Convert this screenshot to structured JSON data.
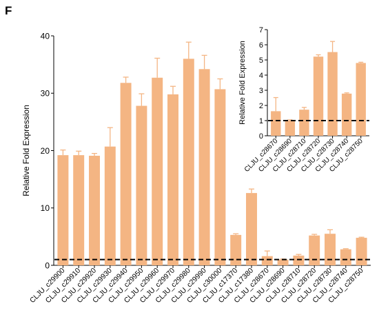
{
  "panel_label": "F",
  "chart_data": [
    {
      "type": "bar",
      "title": "",
      "xlabel": "",
      "ylabel": "Relative Fold Expression",
      "ylim": [
        0,
        40
      ],
      "yticks": [
        0,
        10,
        20,
        30,
        40
      ],
      "bar_color": "#f4b583",
      "error_color": "#f4b583",
      "reference_line": {
        "y": 1,
        "style": "dashed",
        "color": "#000000"
      },
      "categories": [
        "CLJU_c29900",
        "CLJU_c29910",
        "CLJU_c29920",
        "CLJU_c29930",
        "CLJU_c29940",
        "CLJU_c29950",
        "CLJU_c29960",
        "CLJU_c29970",
        "CLJU_c29980",
        "CLJU_c29990",
        "CLJU_c30000",
        "CLJU_c17370",
        "CLJU_c17380",
        "CLJU_c28670",
        "CLJU_c28690",
        "CLJU_c28710",
        "CLJU_c28720",
        "CLJU_c28730",
        "CLJU_c28740",
        "CLJU_c28750"
      ],
      "values": [
        19.2,
        19.2,
        19.1,
        20.7,
        31.8,
        27.8,
        32.7,
        29.8,
        36.0,
        34.2,
        30.7,
        5.3,
        12.6,
        1.6,
        1.0,
        1.7,
        5.2,
        5.5,
        2.8,
        4.8
      ],
      "errors": [
        0.9,
        0.7,
        0.4,
        3.3,
        1.0,
        2.1,
        3.4,
        1.4,
        2.9,
        2.4,
        1.8,
        0.2,
        0.7,
        0.9,
        0.1,
        0.2,
        0.2,
        0.7,
        0.1,
        0.1
      ]
    },
    {
      "type": "bar",
      "title": "",
      "xlabel": "",
      "ylabel": "Relative Fold Expression",
      "ylim": [
        0,
        7
      ],
      "yticks": [
        0,
        1,
        2,
        3,
        4,
        5,
        6,
        7
      ],
      "bar_color": "#f4b583",
      "error_color": "#f4b583",
      "reference_line": {
        "y": 1,
        "style": "dashed",
        "color": "#000000"
      },
      "categories": [
        "CLJU_c28670",
        "CLJU_c28690",
        "CLJU_c28710",
        "CLJU_c28720",
        "CLJU_c28730",
        "CLJU_c28740",
        "CLJU_c28750"
      ],
      "values": [
        1.62,
        1.0,
        1.72,
        5.22,
        5.52,
        2.78,
        4.8
      ],
      "errors": [
        0.9,
        0.05,
        0.15,
        0.12,
        0.7,
        0.05,
        0.05
      ]
    }
  ]
}
